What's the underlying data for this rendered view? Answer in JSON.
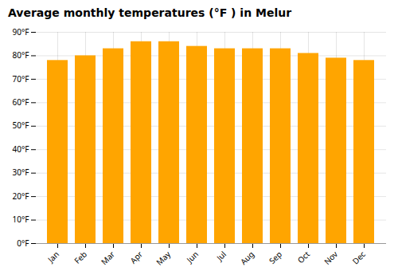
{
  "chart_data": {
    "type": "bar",
    "title": "Average monthly temperatures (°F ) in Melur",
    "categories": [
      "Jan",
      "Feb",
      "Mar",
      "Apr",
      "May",
      "Jun",
      "Jul",
      "Aug",
      "Sep",
      "Oct",
      "Nov",
      "Dec"
    ],
    "values": [
      78,
      80,
      83,
      86,
      86,
      84,
      83,
      83,
      83,
      81,
      79,
      78
    ],
    "color": "#FFA500",
    "ylim": [
      0,
      90
    ],
    "yticks": [
      {
        "value": 0,
        "label": "0°F"
      },
      {
        "value": 10,
        "label": "10°F"
      },
      {
        "value": 20,
        "label": "20°F"
      },
      {
        "value": 30,
        "label": "30°F"
      },
      {
        "value": 40,
        "label": "40°F"
      },
      {
        "value": 50,
        "label": "50°F"
      },
      {
        "value": 60,
        "label": "60°F"
      },
      {
        "value": 70,
        "label": "70°F"
      },
      {
        "value": 80,
        "label": "80°F"
      },
      {
        "value": 90,
        "label": "90°F"
      }
    ],
    "grid": true
  }
}
